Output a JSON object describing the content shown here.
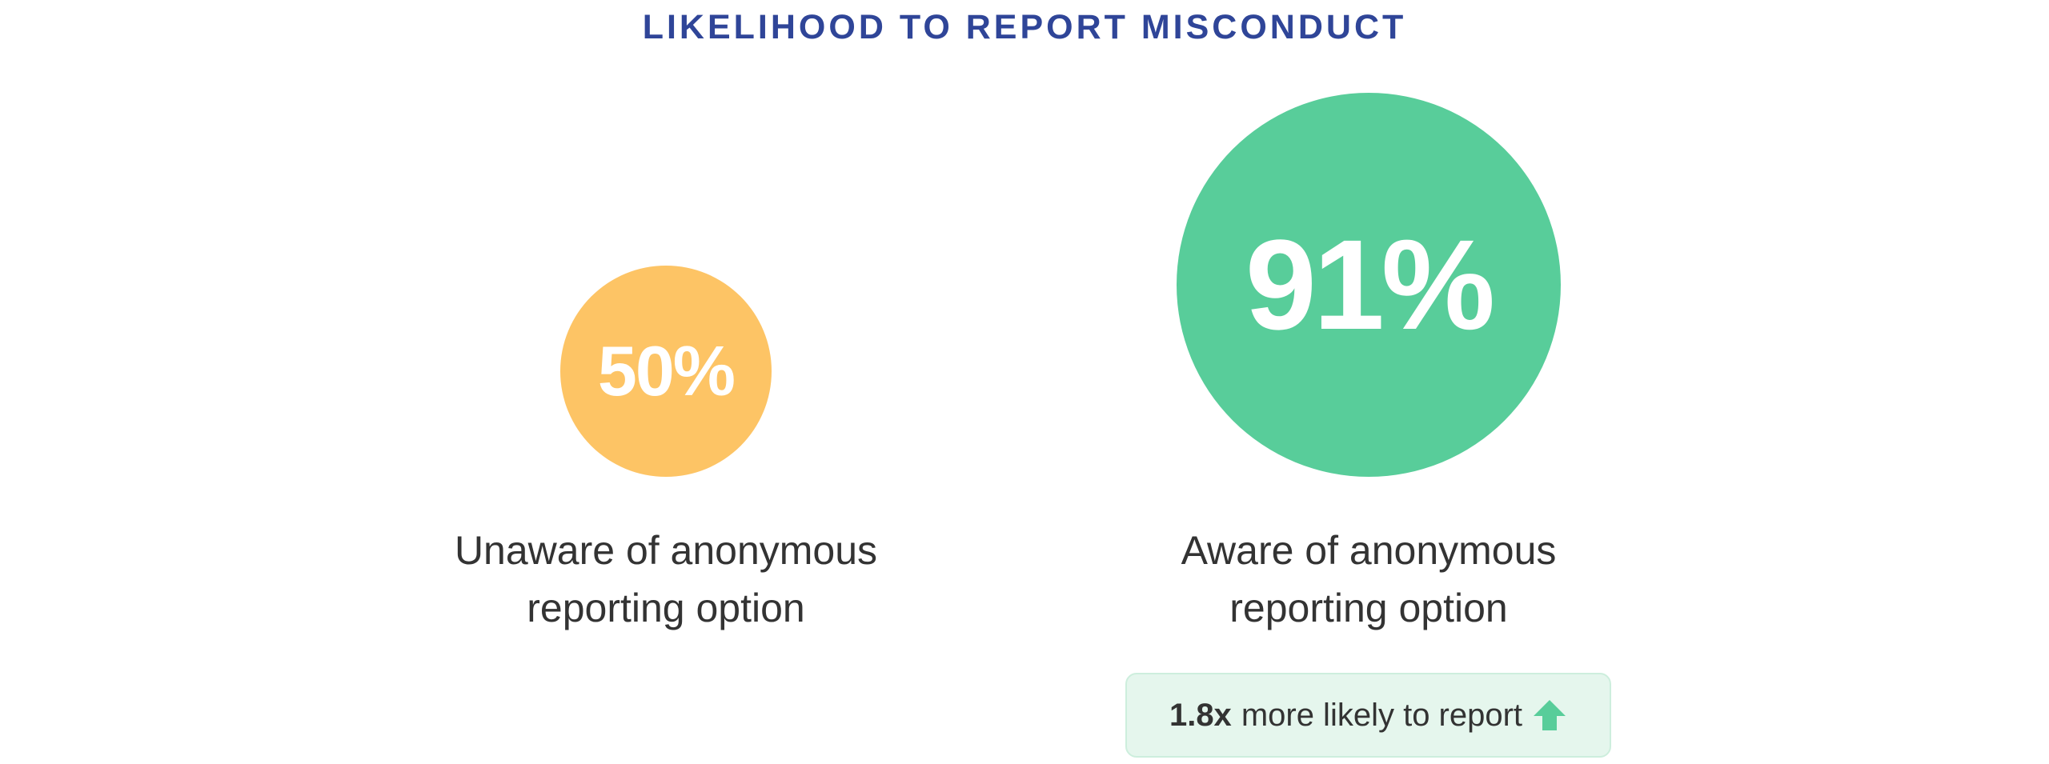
{
  "title": "LIKELIHOOD TO REPORT MISCONDUCT",
  "colors": {
    "title": "#2f4598",
    "unaware": "#fdc465",
    "aware": "#58cd9a",
    "badge_bg": "#e5f6ed",
    "arrow": "#58cd9a"
  },
  "groups": [
    {
      "value_label": "50%",
      "value": 50,
      "label_line1": "Unaware of anonymous",
      "label_line2": "reporting option"
    },
    {
      "value_label": "91%",
      "value": 91,
      "label_line1": "Aware of anonymous",
      "label_line2": "reporting option"
    }
  ],
  "badge": {
    "multiplier": "1.8x",
    "text": "more likely to report",
    "icon": "arrow-up-icon"
  }
}
